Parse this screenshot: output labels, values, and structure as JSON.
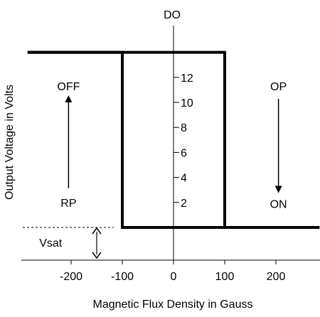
{
  "chart_data": {
    "type": "line",
    "xlabel": "Magnetic Flux Density in Gauss",
    "ylabel": "Output Voltage in Volts",
    "y_axis_title": "DO",
    "x_ticks": [
      -200,
      -100,
      0,
      100,
      200
    ],
    "y_ticks": [
      2,
      4,
      6,
      8,
      10,
      12
    ],
    "xlim": [
      -285,
      285
    ],
    "ylim": [
      -1.7,
      16
    ],
    "series": [
      {
        "x": [
          -285,
          100,
          100,
          285
        ],
        "y": [
          14,
          14,
          0,
          0
        ]
      },
      {
        "x": [
          -285,
          -100,
          -100,
          285
        ],
        "y": [
          14,
          14,
          0,
          0
        ]
      }
    ],
    "annotations": [
      {
        "text": "OFF",
        "x": -205,
        "y": 11.3
      },
      {
        "text": "RP",
        "x": -205,
        "y": 2
      },
      {
        "text": "OP",
        "x": 205,
        "y": 11.3
      },
      {
        "text": "ON",
        "x": 205,
        "y": 1.9
      },
      {
        "text": "Vsat",
        "x": -240,
        "y": -1.2
      }
    ],
    "colors": {
      "line": "#000000",
      "background": "#ffffff"
    }
  }
}
